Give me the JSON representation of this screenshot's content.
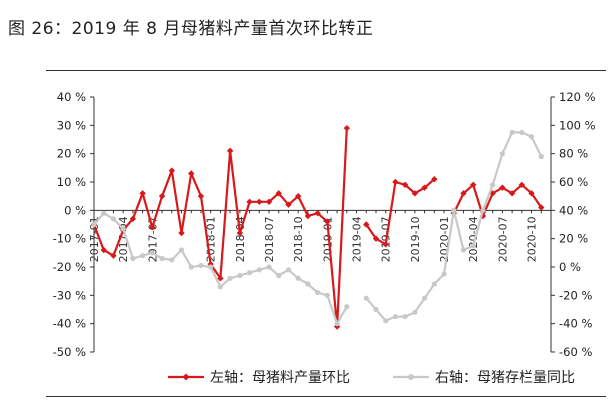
{
  "title": "图 26：2019 年 8 月母猪料产量首次环比转正",
  "chart_data": {
    "type": "line",
    "title": "图 26：2019 年 8 月母猪料产量首次环比转正",
    "x": [
      "2017-01",
      "2017-02",
      "2017-03",
      "2017-04",
      "2017-05",
      "2017-06",
      "2017-07",
      "2017-08",
      "2017-09",
      "2017-10",
      "2017-11",
      "2017-12",
      "2018-01",
      "2018-02",
      "2018-03",
      "2018-04",
      "2018-05",
      "2018-06",
      "2018-07",
      "2018-08",
      "2018-09",
      "2018-10",
      "2018-11",
      "2018-12",
      "2019-01",
      "2019-02",
      "2019-03",
      "2019-04",
      "2019-05",
      "2019-06",
      "2019-07",
      "2019-08",
      "2019-09",
      "2019-10",
      "2019-11",
      "2019-12",
      "2020-01",
      "2020-02",
      "2020-03",
      "2020-04",
      "2020-05",
      "2020-06",
      "2020-07",
      "2020-08",
      "2020-09",
      "2020-10",
      "2020-11",
      "2020-12"
    ],
    "x_tick_labels": [
      "2017-01",
      "2017-04",
      "2017-07",
      "2018-01",
      "2018-04",
      "2018-07",
      "2018-10",
      "2019-01",
      "2019-04",
      "2019-07",
      "2019-10",
      "2020-01",
      "2020-04",
      "2020-07",
      "2020-10"
    ],
    "left_axis": {
      "ylim": [
        -50,
        40
      ],
      "ticks": [
        "40 %",
        "30 %",
        "20 %",
        "10 %",
        "0 %",
        "-10 %",
        "-20 %",
        "-30 %",
        "-40 %",
        "-50 %"
      ],
      "tick_values": [
        40,
        30,
        20,
        10,
        0,
        -10,
        -20,
        -30,
        -40,
        -50
      ]
    },
    "right_axis": {
      "ylim": [
        -60,
        120
      ],
      "ticks": [
        "120 %",
        "100 %",
        "80 %",
        "60 %",
        "40 %",
        "20 %",
        "0 %",
        "-20 %",
        "-40 %",
        "-60 %"
      ],
      "tick_values": [
        120,
        100,
        80,
        60,
        40,
        20,
        0,
        -20,
        -40,
        -60
      ]
    },
    "series": [
      {
        "name": "左轴：母猪料产量环比",
        "axis": "left",
        "color": "#d7191c",
        "marker": "diamond",
        "values": [
          -5,
          -14,
          -16,
          -7,
          -3,
          6,
          -6,
          5,
          14,
          -8,
          13,
          5,
          -19,
          -24,
          21,
          -8,
          3,
          3,
          3,
          6,
          2,
          5,
          -2,
          -1,
          -4,
          -41,
          29,
          null,
          -5,
          -10,
          -12,
          10,
          9,
          6,
          8,
          11,
          null,
          -1,
          6,
          9,
          -2,
          6,
          8,
          6,
          9,
          6,
          1,
          null
        ]
      },
      {
        "name": "右轴：母猪存栏量同比",
        "axis": "right",
        "color": "#c8c8c8",
        "marker": "circle",
        "values": [
          30,
          38,
          34,
          27,
          6,
          8,
          10,
          6,
          5,
          12,
          0,
          1,
          0,
          -14,
          -8,
          -6,
          -4,
          -2,
          0,
          -6,
          -2,
          -8,
          -12,
          -18,
          -20,
          -40,
          -28,
          null,
          -22,
          -30,
          -38,
          -35,
          -35,
          -32,
          -22,
          -12,
          -5,
          40,
          12,
          15,
          40,
          58,
          80,
          95,
          95,
          92,
          78,
          null
        ]
      }
    ],
    "legend_position": "bottom",
    "grid": false
  }
}
